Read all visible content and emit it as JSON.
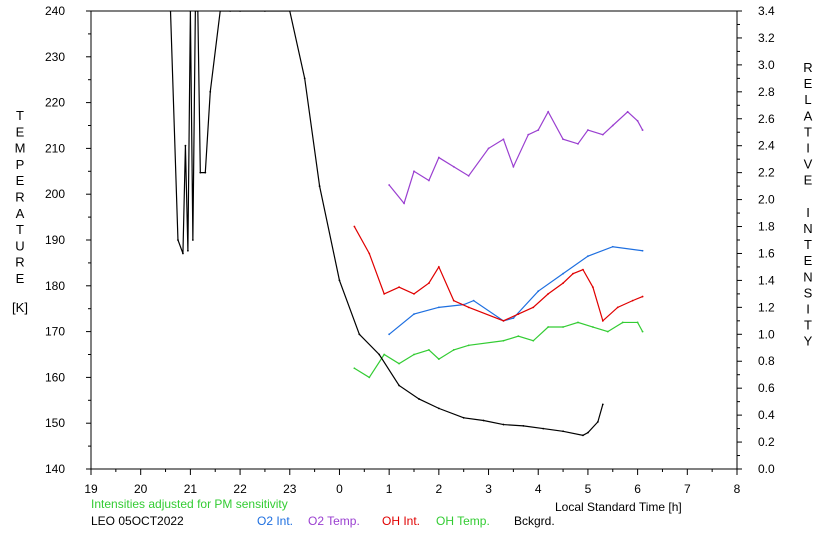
{
  "chart_data": {
    "type": "line",
    "title": "",
    "x_ticks": [
      "19",
      "20",
      "21",
      "22",
      "23",
      "0",
      "1",
      "2",
      "3",
      "4",
      "5",
      "6",
      "7",
      "8"
    ],
    "xlabel": "Local Standard Time [h]",
    "ylabel_left": "TEMPERATURE",
    "ylabel_left_unit": "[K]",
    "ylabel_right": "RELATIVE INTENSITY",
    "ylim_left": [
      140,
      240
    ],
    "ylim_right": [
      0.0,
      3.4
    ],
    "left_ticks": [
      "140",
      "150",
      "160",
      "170",
      "180",
      "190",
      "200",
      "210",
      "220",
      "230",
      "240"
    ],
    "right_ticks": [
      "0.0",
      "0.2",
      "0.4",
      "0.6",
      "0.8",
      "1.0",
      "1.2",
      "1.4",
      "1.6",
      "1.8",
      "2.0",
      "2.2",
      "2.4",
      "2.6",
      "2.8",
      "3.0",
      "3.2",
      "3.4"
    ],
    "note": "Intensities adjusted for PM sensitivity",
    "station": "LEO 05OCT2022",
    "grid": false,
    "legend_position": "bottom",
    "series": [
      {
        "name": "O2 Int.",
        "axis": "right",
        "color": "#1e6fe0",
        "x": [
          1.0,
          1.5,
          2.0,
          2.5,
          2.7,
          3.3,
          3.5,
          4.0,
          4.5,
          5.0,
          5.5,
          6.1
        ],
        "values": [
          1.0,
          1.15,
          1.2,
          1.22,
          1.25,
          1.1,
          1.12,
          1.32,
          1.45,
          1.58,
          1.65,
          1.62
        ]
      },
      {
        "name": "O2 Temp.",
        "axis": "left",
        "color": "#9a3fd0",
        "x": [
          1.0,
          1.3,
          1.5,
          1.8,
          2.0,
          2.3,
          2.6,
          3.0,
          3.3,
          3.5,
          3.8,
          4.0,
          4.2,
          4.5,
          4.8,
          5.0,
          5.3,
          5.5,
          5.8,
          6.0,
          6.1
        ],
        "values": [
          202,
          198,
          205,
          203,
          208,
          206,
          204,
          210,
          212,
          206,
          213,
          214,
          218,
          212,
          211,
          214,
          213,
          215,
          218,
          216,
          214
        ]
      },
      {
        "name": "OH Int.",
        "axis": "right",
        "color": "#e00000",
        "x": [
          0.3,
          0.6,
          0.9,
          1.2,
          1.5,
          1.8,
          2.0,
          2.3,
          2.6,
          3.3,
          3.6,
          3.9,
          4.2,
          4.5,
          4.7,
          4.9,
          5.1,
          5.3,
          5.6,
          5.9,
          6.1
        ],
        "values": [
          1.8,
          1.6,
          1.3,
          1.35,
          1.3,
          1.38,
          1.5,
          1.25,
          1.2,
          1.1,
          1.15,
          1.2,
          1.3,
          1.38,
          1.45,
          1.48,
          1.35,
          1.1,
          1.2,
          1.25,
          1.28
        ]
      },
      {
        "name": "OH Temp.",
        "axis": "left",
        "color": "#33cc33",
        "x": [
          0.3,
          0.6,
          0.9,
          1.2,
          1.5,
          1.8,
          2.0,
          2.3,
          2.6,
          3.3,
          3.6,
          3.9,
          4.2,
          4.5,
          4.8,
          5.1,
          5.4,
          5.7,
          6.0,
          6.1
        ],
        "values": [
          162,
          160,
          165,
          163,
          165,
          166,
          164,
          166,
          167,
          168,
          169,
          168,
          171,
          171,
          172,
          171,
          170,
          172,
          172,
          170
        ]
      },
      {
        "name": "Bckgrd.",
        "axis": "right",
        "color": "#000000",
        "x": [
          20.6,
          20.75,
          20.85,
          20.9,
          20.95,
          21.0,
          21.05,
          21.1,
          21.15,
          21.2,
          21.3,
          21.4,
          21.6,
          21.8,
          22.0,
          22.5,
          23.0,
          23.3,
          23.6,
          24.0,
          24.4,
          24.8,
          25.2,
          25.6,
          26.0,
          26.5,
          26.9,
          27.3,
          27.7,
          28.1,
          28.5,
          28.9,
          29.0,
          29.2,
          29.3
        ],
        "values": [
          3.4,
          1.7,
          1.6,
          2.4,
          1.62,
          3.4,
          1.7,
          3.4,
          3.4,
          2.2,
          2.2,
          2.8,
          3.4,
          3.4,
          3.4,
          3.4,
          3.4,
          2.9,
          2.1,
          1.4,
          1.0,
          0.85,
          0.62,
          0.52,
          0.45,
          0.38,
          0.36,
          0.33,
          0.32,
          0.3,
          0.28,
          0.25,
          0.27,
          0.35,
          0.48
        ]
      }
    ]
  }
}
